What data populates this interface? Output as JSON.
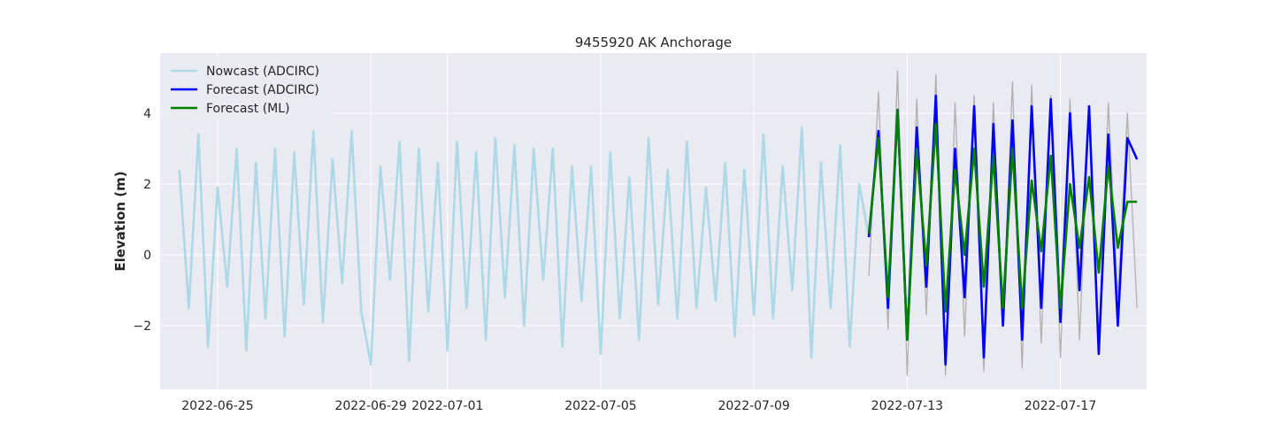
{
  "chart_data": {
    "type": "line",
    "title": "9455920 AK Anchorage",
    "xlabel": "",
    "ylabel": "Elevation (m)",
    "x_start": "2022-06-23T12:00",
    "x_end": "2022-07-19T06:00",
    "ylim": [
      -3.8,
      5.7
    ],
    "x_ticks": [
      "2022-06-25",
      "2022-06-29",
      "2022-07-01",
      "2022-07-05",
      "2022-07-09",
      "2022-07-13",
      "2022-07-17"
    ],
    "y_ticks": [
      -2,
      0,
      2,
      4
    ],
    "y_tick_labels": [
      "−2",
      "0",
      "2",
      "4"
    ],
    "grid": true,
    "legend_position": "top-left",
    "colors": {
      "background": "#eaeaf2",
      "grid": "#ffffff",
      "nowcast": "#add8e6",
      "forecast_adcirc": "#0000ff",
      "forecast_ml": "#008000",
      "observed": "#b0b0b0"
    },
    "series": [
      {
        "name": "Nowcast (ADCIRC)",
        "key": "nowcast",
        "x": [
          "2022-06-24T00:00",
          "2022-06-24T06:00",
          "2022-06-24T12:00",
          "2022-06-24T18:00",
          "2022-06-25T00:00",
          "2022-06-25T06:00",
          "2022-06-25T12:00",
          "2022-06-25T18:00",
          "2022-06-26T00:00",
          "2022-06-26T06:00",
          "2022-06-26T12:00",
          "2022-06-26T18:00",
          "2022-06-27T00:00",
          "2022-06-27T06:00",
          "2022-06-27T12:00",
          "2022-06-27T18:00",
          "2022-06-28T00:00",
          "2022-06-28T06:00",
          "2022-06-28T12:00",
          "2022-06-28T18:00",
          "2022-06-29T00:00",
          "2022-06-29T06:00",
          "2022-06-29T12:00",
          "2022-06-29T18:00",
          "2022-06-30T00:00",
          "2022-06-30T06:00",
          "2022-06-30T12:00",
          "2022-06-30T18:00",
          "2022-07-01T00:00",
          "2022-07-01T06:00",
          "2022-07-01T12:00",
          "2022-07-01T18:00",
          "2022-07-02T00:00",
          "2022-07-02T06:00",
          "2022-07-02T12:00",
          "2022-07-02T18:00",
          "2022-07-03T00:00",
          "2022-07-03T06:00",
          "2022-07-03T12:00",
          "2022-07-03T18:00",
          "2022-07-04T00:00",
          "2022-07-04T06:00",
          "2022-07-04T12:00",
          "2022-07-04T18:00",
          "2022-07-05T00:00",
          "2022-07-05T06:00",
          "2022-07-05T12:00",
          "2022-07-05T18:00",
          "2022-07-06T00:00",
          "2022-07-06T06:00",
          "2022-07-06T12:00",
          "2022-07-06T18:00",
          "2022-07-07T00:00",
          "2022-07-07T06:00",
          "2022-07-07T12:00",
          "2022-07-07T18:00",
          "2022-07-08T00:00",
          "2022-07-08T06:00",
          "2022-07-08T12:00",
          "2022-07-08T18:00",
          "2022-07-09T00:00",
          "2022-07-09T06:00",
          "2022-07-09T12:00",
          "2022-07-09T18:00",
          "2022-07-10T00:00",
          "2022-07-10T06:00",
          "2022-07-10T12:00",
          "2022-07-10T18:00",
          "2022-07-11T00:00",
          "2022-07-11T06:00",
          "2022-07-11T12:00",
          "2022-07-11T18:00",
          "2022-07-12T00:00"
        ],
        "values": [
          2.4,
          -1.5,
          3.4,
          -2.6,
          1.9,
          -0.9,
          3.0,
          -2.7,
          2.6,
          -1.8,
          3.0,
          -2.3,
          2.9,
          -1.4,
          3.5,
          -1.9,
          2.7,
          -0.8,
          3.5,
          -1.6,
          -3.1,
          2.5,
          -0.7,
          3.2,
          -3.0,
          3.0,
          -1.6,
          2.6,
          -2.7,
          3.2,
          -1.5,
          2.9,
          -2.4,
          3.3,
          -1.2,
          3.1,
          -2.0,
          3.0,
          -0.7,
          3.0,
          -2.6,
          2.5,
          -1.3,
          2.5,
          -2.8,
          2.9,
          -1.8,
          2.2,
          -2.4,
          3.3,
          -1.4,
          2.4,
          -1.8,
          3.2,
          -1.5,
          1.9,
          -1.3,
          2.6,
          -2.3,
          2.4,
          -1.7,
          3.4,
          -1.8,
          2.5,
          -1.0,
          3.6,
          -2.9,
          2.6,
          -1.5,
          3.1,
          -2.6,
          2.0,
          0.5
        ]
      },
      {
        "name": "Forecast (ADCIRC)",
        "key": "forecast_adcirc",
        "x": [
          "2022-07-12T00:00",
          "2022-07-12T06:00",
          "2022-07-12T12:00",
          "2022-07-12T18:00",
          "2022-07-13T00:00",
          "2022-07-13T06:00",
          "2022-07-13T12:00",
          "2022-07-13T18:00",
          "2022-07-14T00:00",
          "2022-07-14T06:00",
          "2022-07-14T12:00",
          "2022-07-14T18:00",
          "2022-07-15T00:00",
          "2022-07-15T06:00",
          "2022-07-15T12:00",
          "2022-07-15T18:00",
          "2022-07-16T00:00",
          "2022-07-16T06:00",
          "2022-07-16T12:00",
          "2022-07-16T18:00",
          "2022-07-17T00:00",
          "2022-07-17T06:00",
          "2022-07-17T12:00",
          "2022-07-17T18:00",
          "2022-07-18T00:00",
          "2022-07-18T06:00",
          "2022-07-18T12:00",
          "2022-07-18T18:00",
          "2022-07-19T00:00"
        ],
        "values": [
          0.5,
          3.5,
          -1.5,
          4.1,
          -2.4,
          3.6,
          -0.9,
          4.5,
          -3.1,
          3.0,
          -1.2,
          4.2,
          -2.9,
          3.7,
          -2.0,
          3.8,
          -2.4,
          4.2,
          -1.5,
          4.4,
          -1.9,
          4.0,
          -1.0,
          4.2,
          -2.8,
          3.4,
          -2.0,
          3.3,
          2.7
        ]
      },
      {
        "name": "Forecast (ML)",
        "key": "forecast_ml",
        "x": [
          "2022-07-12T00:00",
          "2022-07-12T06:00",
          "2022-07-12T12:00",
          "2022-07-12T18:00",
          "2022-07-13T00:00",
          "2022-07-13T06:00",
          "2022-07-13T12:00",
          "2022-07-13T18:00",
          "2022-07-14T00:00",
          "2022-07-14T06:00",
          "2022-07-14T12:00",
          "2022-07-14T18:00",
          "2022-07-15T00:00",
          "2022-07-15T06:00",
          "2022-07-15T12:00",
          "2022-07-15T18:00",
          "2022-07-16T00:00",
          "2022-07-16T06:00",
          "2022-07-16T12:00",
          "2022-07-16T18:00",
          "2022-07-17T00:00",
          "2022-07-17T06:00",
          "2022-07-17T12:00",
          "2022-07-17T18:00",
          "2022-07-18T00:00",
          "2022-07-18T06:00",
          "2022-07-18T12:00",
          "2022-07-18T18:00",
          "2022-07-19T00:00"
        ],
        "values": [
          0.6,
          3.3,
          -1.2,
          4.1,
          -2.4,
          3.0,
          -0.3,
          3.7,
          -1.6,
          2.4,
          0.0,
          3.0,
          -0.9,
          2.8,
          -1.5,
          3.0,
          -1.5,
          2.1,
          0.1,
          2.8,
          -1.5,
          2.0,
          0.2,
          2.2,
          -0.5,
          2.5,
          0.2,
          1.5,
          1.5
        ]
      },
      {
        "key": "observed",
        "x": [
          "2022-07-12T00:00",
          "2022-07-12T06:00",
          "2022-07-12T12:00",
          "2022-07-12T18:00",
          "2022-07-13T00:00",
          "2022-07-13T06:00",
          "2022-07-13T12:00",
          "2022-07-13T18:00",
          "2022-07-14T00:00",
          "2022-07-14T06:00",
          "2022-07-14T12:00",
          "2022-07-14T18:00",
          "2022-07-15T00:00",
          "2022-07-15T06:00",
          "2022-07-15T12:00",
          "2022-07-15T18:00",
          "2022-07-16T00:00",
          "2022-07-16T06:00",
          "2022-07-16T12:00",
          "2022-07-16T18:00",
          "2022-07-17T00:00",
          "2022-07-17T06:00",
          "2022-07-17T12:00",
          "2022-07-17T18:00",
          "2022-07-18T00:00",
          "2022-07-18T06:00",
          "2022-07-18T12:00",
          "2022-07-18T18:00",
          "2022-07-19T00:00"
        ],
        "values": [
          -0.6,
          4.6,
          -2.1,
          5.2,
          -3.4,
          4.4,
          -1.7,
          5.1,
          -3.4,
          4.3,
          -2.3,
          4.5,
          -3.3,
          4.3,
          -2.0,
          4.9,
          -3.2,
          4.8,
          -2.5,
          4.5,
          -2.9,
          4.4,
          -2.4,
          4.1,
          -2.7,
          4.3,
          -1.2,
          4.0,
          -1.5
        ]
      }
    ]
  }
}
